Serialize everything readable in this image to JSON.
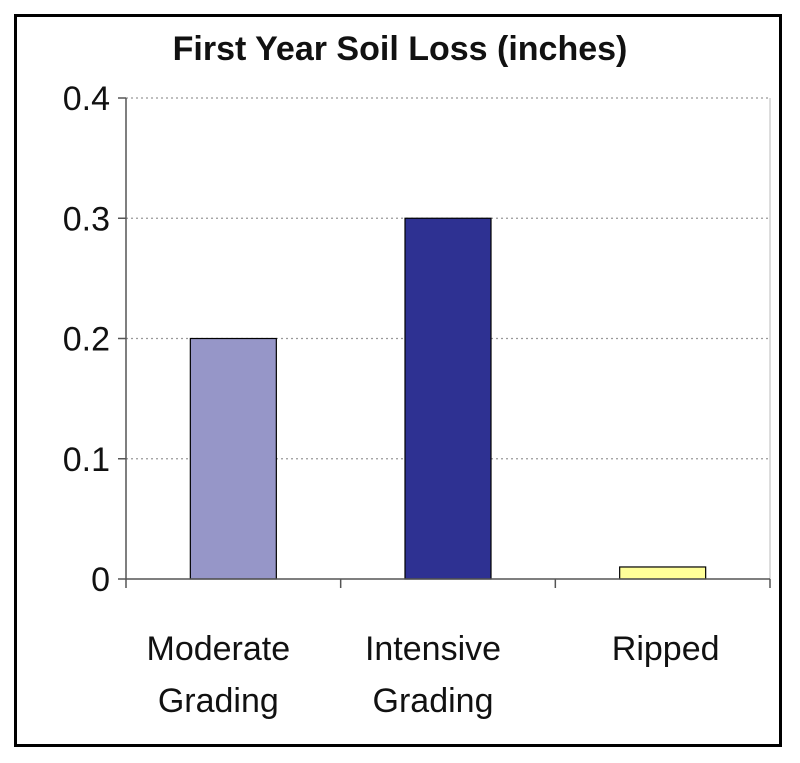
{
  "chart_data": {
    "type": "bar",
    "title": "First Year Soil Loss (inches)",
    "categories": [
      [
        "Moderate",
        "Grading"
      ],
      [
        "Intensive",
        "Grading"
      ],
      [
        "Ripped"
      ]
    ],
    "values": [
      0.2,
      0.3,
      0.01
    ],
    "colors": [
      "#9696c8",
      "#2e3192",
      "#ffff99"
    ],
    "ylim": [
      0,
      0.4
    ],
    "yticks": [
      "0",
      "0.1",
      "0.2",
      "0.3",
      "0.4"
    ],
    "ytick_values": [
      0,
      0.1,
      0.2,
      0.3,
      0.4
    ],
    "grid": true,
    "legend": false
  }
}
